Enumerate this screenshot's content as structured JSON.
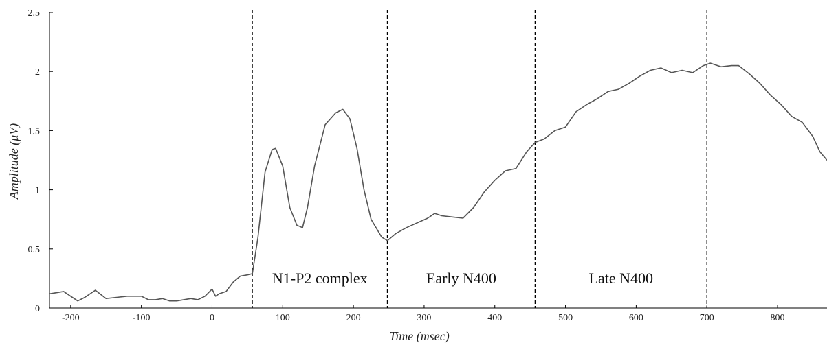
{
  "chart_data": {
    "type": "line",
    "title": "",
    "xlabel": "Time (msec)",
    "ylabel": "Amplitude (μV)",
    "xlim": [
      -230,
      870
    ],
    "ylim": [
      0,
      2.5
    ],
    "xticks": [
      -200,
      -100,
      0,
      100,
      200,
      300,
      400,
      500,
      600,
      700,
      800
    ],
    "xtick_labels": [
      "-200",
      "-100",
      "0",
      "100",
      "200",
      "300",
      "400",
      "500",
      "600",
      "700",
      "800"
    ],
    "yticks": [
      0,
      0.5,
      1,
      1.5,
      2,
      2.5
    ],
    "ytick_labels": [
      "0",
      "0.5",
      "1",
      "1.5",
      "2",
      "2.5"
    ],
    "grid": false,
    "legend": "none",
    "line_color": "#555555",
    "dividers": [
      57,
      248,
      457,
      700
    ],
    "regions": [
      {
        "label": "N1-P2 complex",
        "x_start": 57,
        "x_end": 248
      },
      {
        "label": "Early N400",
        "x_start": 248,
        "x_end": 457
      },
      {
        "label": "Late N400",
        "x_start": 457,
        "x_end": 700
      }
    ],
    "series": [
      {
        "x": [
          -230,
          -210,
          -200,
          -190,
          -180,
          -165,
          -150,
          -135,
          -120,
          -100,
          -90,
          -80,
          -70,
          -60,
          -50,
          -40,
          -30,
          -20,
          -10,
          0,
          5,
          10,
          20,
          30,
          40,
          50,
          57,
          65,
          75,
          85,
          90,
          100,
          110,
          120,
          128,
          135,
          145,
          160,
          175,
          185,
          195,
          205,
          215,
          225,
          240,
          248,
          260,
          275,
          290,
          305,
          315,
          325,
          340,
          355,
          370,
          385,
          400,
          415,
          430,
          445,
          457,
          470,
          485,
          500,
          515,
          530,
          545,
          560,
          575,
          590,
          605,
          620,
          635,
          650,
          665,
          680,
          695,
          705,
          720,
          735,
          745,
          760,
          775,
          790,
          805,
          820,
          835,
          850,
          860,
          870
        ],
        "y": [
          0.12,
          0.14,
          0.1,
          0.06,
          0.09,
          0.15,
          0.08,
          0.09,
          0.1,
          0.1,
          0.07,
          0.07,
          0.08,
          0.06,
          0.06,
          0.07,
          0.08,
          0.07,
          0.1,
          0.16,
          0.1,
          0.12,
          0.14,
          0.22,
          0.27,
          0.28,
          0.29,
          0.6,
          1.15,
          1.34,
          1.35,
          1.2,
          0.85,
          0.7,
          0.68,
          0.85,
          1.2,
          1.55,
          1.65,
          1.68,
          1.6,
          1.35,
          1.0,
          0.75,
          0.6,
          0.57,
          0.63,
          0.68,
          0.72,
          0.76,
          0.8,
          0.78,
          0.77,
          0.76,
          0.85,
          0.98,
          1.08,
          1.16,
          1.18,
          1.32,
          1.4,
          1.43,
          1.5,
          1.53,
          1.66,
          1.72,
          1.77,
          1.83,
          1.85,
          1.9,
          1.96,
          2.01,
          2.03,
          1.99,
          2.01,
          1.99,
          2.05,
          2.07,
          2.04,
          2.05,
          2.05,
          1.98,
          1.9,
          1.8,
          1.72,
          1.62,
          1.57,
          1.45,
          1.32,
          1.25
        ]
      }
    ]
  }
}
